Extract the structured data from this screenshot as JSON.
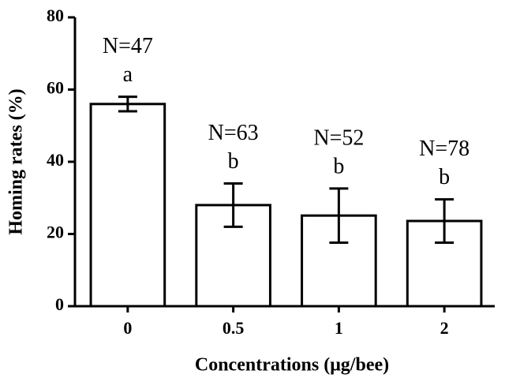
{
  "chart_data": {
    "type": "bar",
    "x_label": "Concentrations (μg/bee)",
    "y_label": "Homing rates (%)",
    "categories": [
      "0",
      "0.5",
      "1",
      "2"
    ],
    "values": [
      56,
      28,
      25.1,
      23.6
    ],
    "errors": [
      2,
      6,
      7.5,
      6
    ],
    "n_labels": [
      "N=47",
      "N=63",
      "N=52",
      "N=78"
    ],
    "letters": [
      "a",
      "b",
      "b",
      "b"
    ],
    "color": "#ffffff",
    "ylim": [
      0,
      80
    ],
    "yticks": [
      0,
      20,
      40,
      60,
      80
    ],
    "grid": false
  }
}
